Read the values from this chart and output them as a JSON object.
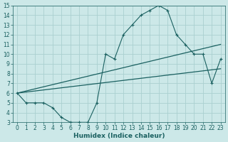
{
  "xlabel": "Humidex (Indice chaleur)",
  "xlim": [
    -0.5,
    23.5
  ],
  "ylim": [
    3,
    15
  ],
  "xticks": [
    0,
    1,
    2,
    3,
    4,
    5,
    6,
    7,
    8,
    9,
    10,
    11,
    12,
    13,
    14,
    15,
    16,
    17,
    18,
    19,
    20,
    21,
    22,
    23
  ],
  "yticks": [
    3,
    4,
    5,
    6,
    7,
    8,
    9,
    10,
    11,
    12,
    13,
    14,
    15
  ],
  "bg_color": "#cce8e8",
  "grid_color": "#aad0d0",
  "line_color": "#1a6060",
  "line1_x": [
    0,
    1,
    2,
    3,
    4,
    5,
    6,
    7,
    8,
    9,
    10,
    11,
    12,
    13,
    14,
    15,
    16,
    17,
    18,
    19,
    20,
    21,
    22,
    23
  ],
  "line1_y": [
    6.0,
    5.0,
    5.0,
    5.0,
    4.5,
    3.5,
    3.0,
    3.0,
    3.0,
    5.0,
    10.0,
    9.5,
    12.0,
    13.0,
    14.0,
    14.5,
    15.0,
    14.5,
    12.0,
    11.0,
    10.0,
    10.0,
    7.0,
    9.5
  ],
  "line2_x": [
    0,
    23
  ],
  "line2_y": [
    6.0,
    11.0
  ],
  "line3_x": [
    0,
    23
  ],
  "line3_y": [
    6.0,
    8.5
  ],
  "tick_fontsize": 5.5,
  "xlabel_fontsize": 6.5
}
